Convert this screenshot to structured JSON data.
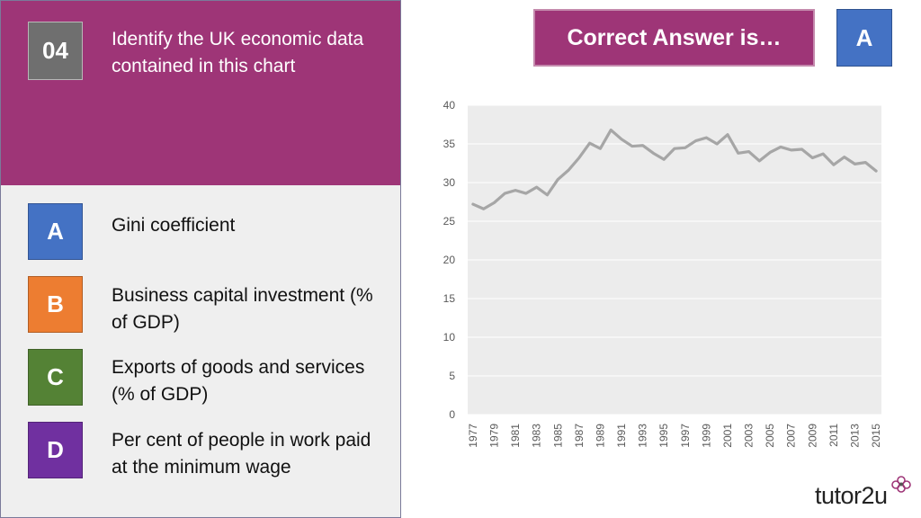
{
  "question": {
    "number": "04",
    "text": "Identify the UK economic data contained in this chart"
  },
  "options": [
    {
      "letter": "A",
      "text": "Gini coefficient",
      "color": "#4472c4"
    },
    {
      "letter": "B",
      "text": "Business capital investment (% of GDP)",
      "color": "#ed7d31"
    },
    {
      "letter": "C",
      "text": "Exports of goods and services (% of GDP)",
      "color": "#548235"
    },
    {
      "letter": "D",
      "text": "Per cent of people in work paid at the minimum wage",
      "color": "#7030a0"
    }
  ],
  "answer": {
    "banner": "Correct Answer is…",
    "letter": "A"
  },
  "branding": {
    "logo_text": "tutor2u"
  },
  "chart_data": {
    "type": "line",
    "title": "",
    "xlabel": "",
    "ylabel": "",
    "x": [
      1977,
      1978,
      1979,
      1980,
      1981,
      1982,
      1983,
      1984,
      1985,
      1986,
      1987,
      1988,
      1989,
      1990,
      1991,
      1992,
      1993,
      1994,
      1995,
      1996,
      1997,
      1998,
      1999,
      2000,
      2001,
      2002,
      2003,
      2004,
      2005,
      2006,
      2007,
      2008,
      2009,
      2010,
      2011,
      2012,
      2013,
      2014,
      2015
    ],
    "x_tick_labels": [
      "1977",
      "1979",
      "1981",
      "1983",
      "1985",
      "1987",
      "1989",
      "1991",
      "1993",
      "1995",
      "1997",
      "1999",
      "2001",
      "2003",
      "2005",
      "2007",
      "2009",
      "2011",
      "2013",
      "2015"
    ],
    "series": [
      {
        "name": "",
        "color": "#a6a6a6",
        "values": [
          27.2,
          26.6,
          27.4,
          28.6,
          29.0,
          28.6,
          29.4,
          28.4,
          30.4,
          31.6,
          33.2,
          35.1,
          34.4,
          36.8,
          35.6,
          34.7,
          34.8,
          33.8,
          33.0,
          34.4,
          34.5,
          35.4,
          35.8,
          35.0,
          36.2,
          33.8,
          34.0,
          32.8,
          33.9,
          34.6,
          34.2,
          34.3,
          33.2,
          33.7,
          32.3,
          33.3,
          32.4,
          32.6,
          31.5
        ]
      }
    ],
    "ylim": [
      0,
      40
    ],
    "y_ticks": [
      0,
      5,
      10,
      15,
      20,
      25,
      30,
      35,
      40
    ],
    "grid": true,
    "background": "#ececec"
  }
}
